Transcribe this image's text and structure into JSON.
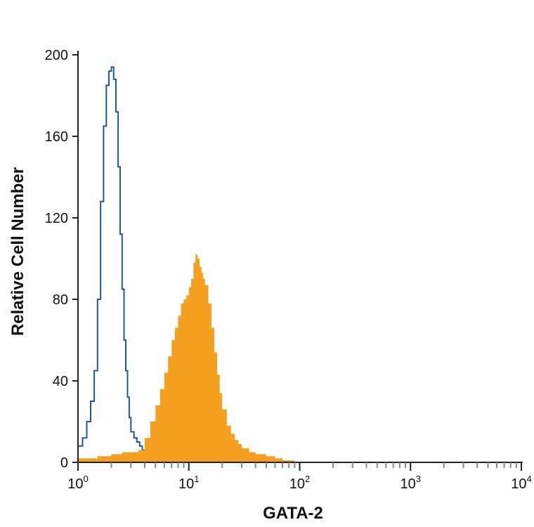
{
  "chart_data": {
    "type": "area",
    "title": "",
    "xlabel": "GATA-2",
    "ylabel": "Relative Cell Number",
    "xscale": "log",
    "xlim": [
      1,
      10000
    ],
    "ylim": [
      0,
      200
    ],
    "yticks": [
      0,
      40,
      80,
      120,
      160,
      200
    ],
    "ytick_labels": [
      "0",
      "40",
      "80",
      "120",
      "160",
      "200"
    ],
    "xticks": [
      {
        "value": 1,
        "base": "10",
        "exp": "0"
      },
      {
        "value": 10,
        "base": "10",
        "exp": "1"
      },
      {
        "value": 100,
        "base": "10",
        "exp": "2"
      },
      {
        "value": 1000,
        "base": "10",
        "exp": "3"
      },
      {
        "value": 10000,
        "base": "10",
        "exp": "4"
      }
    ],
    "grid": false,
    "legend": "none",
    "series": [
      {
        "style": "outline",
        "color": "#1f5a8a",
        "x": [
          1.0,
          1.1,
          1.2,
          1.3,
          1.4,
          1.5,
          1.6,
          1.7,
          1.8,
          1.9,
          2.0,
          2.1,
          2.2,
          2.3,
          2.4,
          2.5,
          2.6,
          2.7,
          2.8,
          2.9,
          3.0,
          3.2,
          3.4,
          3.6,
          3.8,
          4.0
        ],
        "y": [
          8,
          12,
          20,
          30,
          45,
          80,
          128,
          165,
          185,
          192,
          194,
          188,
          172,
          145,
          112,
          85,
          60,
          45,
          32,
          22,
          15,
          12,
          10,
          8,
          6,
          4
        ]
      },
      {
        "style": "filled",
        "color": "#f5a020",
        "x": [
          1.0,
          1.5,
          2.0,
          2.5,
          3.0,
          3.5,
          4.0,
          4.5,
          5.0,
          5.5,
          6.0,
          6.5,
          7.0,
          7.5,
          8.0,
          8.5,
          9.0,
          9.5,
          10.0,
          10.5,
          11.0,
          11.5,
          12.0,
          12.5,
          13.0,
          13.5,
          14.0,
          15.0,
          16.0,
          17.0,
          18.0,
          19.0,
          20.0,
          22.0,
          24.0,
          26.0,
          28.0,
          30.0,
          35.0,
          40.0,
          50.0,
          60.0,
          70.0,
          80.0,
          90.0,
          100.0
        ],
        "y": [
          2,
          3,
          4,
          5,
          5,
          6,
          12,
          20,
          28,
          36,
          44,
          52,
          60,
          66,
          72,
          78,
          80,
          82,
          86,
          90,
          98,
          102,
          100,
          96,
          93,
          90,
          87,
          78,
          66,
          54,
          43,
          34,
          26,
          18,
          14,
          11,
          9,
          7,
          5,
          4,
          3,
          2,
          1,
          1,
          0,
          0
        ]
      }
    ]
  }
}
